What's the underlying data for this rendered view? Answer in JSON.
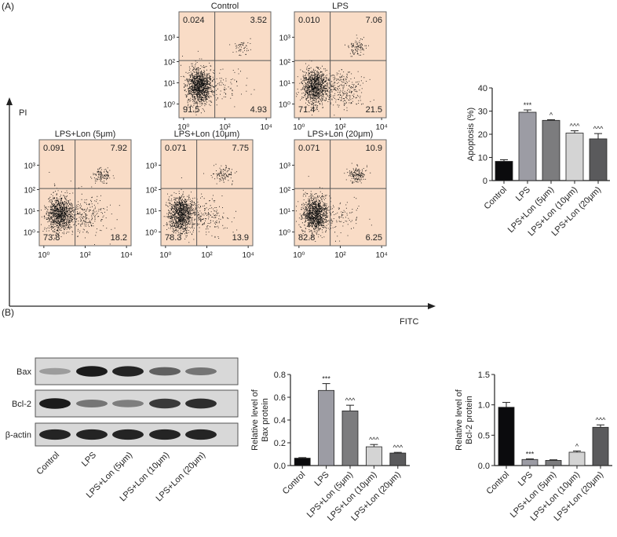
{
  "panel_labels": {
    "a": "(A)",
    "b": "(B)"
  },
  "flow_axes": {
    "y_label": "PI",
    "x_label": "FITC",
    "y_ticks": [
      "10⁰",
      "10¹",
      "10²",
      "10³"
    ],
    "x_ticks": [
      "10⁰",
      "10²",
      "10⁴"
    ]
  },
  "flow_panels": [
    {
      "title": "Control",
      "quadrants": {
        "ul": "0.024",
        "ur": "3.52",
        "ll": "91.5",
        "lr": "4.93"
      }
    },
    {
      "title": "LPS",
      "quadrants": {
        "ul": "0.010",
        "ur": "7.06",
        "ll": "71.4",
        "lr": "21.5"
      }
    },
    {
      "title": "LPS+Lon (5μm)",
      "quadrants": {
        "ul": "0.091",
        "ur": "7.92",
        "ll": "73.8",
        "lr": "18.2"
      }
    },
    {
      "title": "LPS+Lon (10μm)",
      "quadrants": {
        "ul": "0.071",
        "ur": "7.75",
        "ll": "78.3",
        "lr": "13.9"
      }
    },
    {
      "title": "LPS+Lon (20μm)",
      "quadrants": {
        "ul": "0.071",
        "ur": "10.9",
        "ll": "82.8",
        "lr": "6.25"
      }
    }
  ],
  "western_blot": {
    "rows": [
      {
        "label": "Bax",
        "intensity": [
          0.3,
          0.95,
          0.9,
          0.6,
          0.5
        ]
      },
      {
        "label": "Bcl-2",
        "intensity": [
          0.95,
          0.5,
          0.45,
          0.8,
          0.85
        ]
      },
      {
        "label": "β-actin",
        "intensity": [
          0.9,
          0.9,
          0.9,
          0.9,
          0.9
        ]
      }
    ],
    "lanes": [
      "Control",
      "LPS",
      "LPS+Lon (5μm)",
      "LPS+Lon (10μm)",
      "LPS+Lon (20μm)"
    ]
  },
  "colors": {
    "bars": [
      "#0b0b0d",
      "#9c9ca4",
      "#7c7c7e",
      "#d4d4d4",
      "#5a5a5c"
    ],
    "flow_bg": "#f9dcc6"
  },
  "chart_data": [
    {
      "type": "bar",
      "title": "",
      "xlabel": "",
      "ylabel": "Apoptosis (%)",
      "categories": [
        "Control",
        "LPS",
        "LPS+Lon (5μm)",
        "LPS+Lon (10μm)",
        "LPS+Lon (20μm)"
      ],
      "values": [
        8.3,
        29.5,
        26.0,
        20.5,
        18.0
      ],
      "errors": [
        0.7,
        1.0,
        0.3,
        1.0,
        2.3
      ],
      "annotations": [
        "",
        "***",
        "^",
        "^^^",
        "^^^"
      ],
      "ylim": [
        0,
        40
      ],
      "yticks": [
        "0",
        "10",
        "20",
        "30",
        "40"
      ]
    },
    {
      "type": "bar",
      "title": "",
      "xlabel": "",
      "ylabel": "Relative level of Bax protein",
      "ylabel_lines": [
        "Relative level of",
        "Bax protein"
      ],
      "categories": [
        "Control",
        "LPS",
        "LPS+Lon (5μm)",
        "LPS+Lon (10μm)",
        "LPS+Lon (20μm)"
      ],
      "values": [
        0.065,
        0.66,
        0.48,
        0.165,
        0.11
      ],
      "errors": [
        0.005,
        0.06,
        0.05,
        0.02,
        0.006
      ],
      "annotations": [
        "",
        "***",
        "^^^",
        "^^^",
        "^^^"
      ],
      "ylim": [
        0,
        0.8
      ],
      "yticks": [
        "0.0",
        "0.2",
        "0.4",
        "0.6",
        "0.8"
      ]
    },
    {
      "type": "bar",
      "title": "",
      "xlabel": "",
      "ylabel": "Relative level of Bcl-2 protein",
      "ylabel_lines": [
        "Relative level of",
        "Bcl-2 protein"
      ],
      "categories": [
        "Control",
        "LPS",
        "LPS+Lon (5μm)",
        "LPS+Lon (10μm)",
        "LPS+Lon (20μm)"
      ],
      "values": [
        0.96,
        0.1,
        0.085,
        0.22,
        0.63
      ],
      "errors": [
        0.08,
        0.01,
        0.01,
        0.02,
        0.04
      ],
      "annotations": [
        "",
        "***",
        "",
        "^",
        "^^^"
      ],
      "ylim": [
        0,
        1.5
      ],
      "yticks": [
        "0.0",
        "0.5",
        "1.0",
        "1.5"
      ]
    }
  ]
}
